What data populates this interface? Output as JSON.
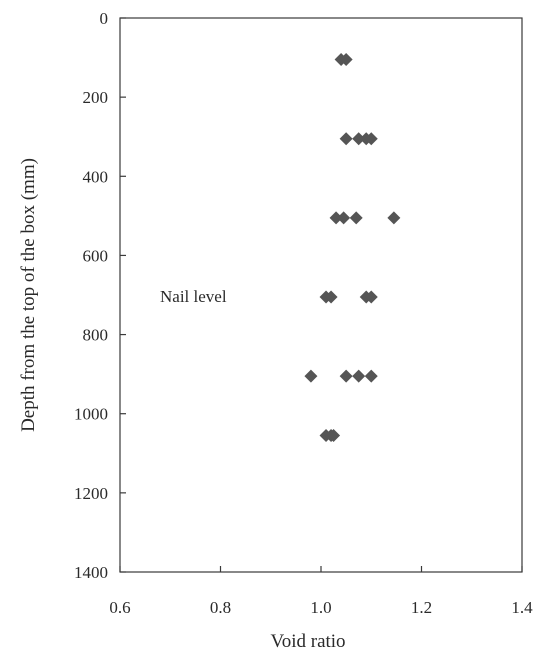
{
  "chart_data": {
    "type": "scatter",
    "xlabel": "Void ratio",
    "ylabel": "Depth from the top of the box (mm)",
    "xlim": [
      0.6,
      1.4
    ],
    "ylim": [
      0,
      1400
    ],
    "y_inverted": true,
    "grid": false,
    "xticks": [
      "0.6",
      "0.8",
      "1.0",
      "1.2",
      "1.4"
    ],
    "yticks": [
      "0",
      "200",
      "400",
      "600",
      "800",
      "1000",
      "1200",
      "1400"
    ],
    "marker": "diamond",
    "marker_color": "#555555",
    "annotation": "Nail level",
    "points": [
      {
        "x": 1.04,
        "y": 105
      },
      {
        "x": 1.05,
        "y": 105
      },
      {
        "x": 1.05,
        "y": 305
      },
      {
        "x": 1.075,
        "y": 305
      },
      {
        "x": 1.09,
        "y": 305
      },
      {
        "x": 1.1,
        "y": 305
      },
      {
        "x": 1.03,
        "y": 505
      },
      {
        "x": 1.045,
        "y": 505
      },
      {
        "x": 1.07,
        "y": 505
      },
      {
        "x": 1.145,
        "y": 505
      },
      {
        "x": 1.01,
        "y": 705
      },
      {
        "x": 1.02,
        "y": 705
      },
      {
        "x": 1.09,
        "y": 705
      },
      {
        "x": 1.1,
        "y": 705
      },
      {
        "x": 0.98,
        "y": 905
      },
      {
        "x": 1.05,
        "y": 905
      },
      {
        "x": 1.075,
        "y": 905
      },
      {
        "x": 1.1,
        "y": 905
      },
      {
        "x": 1.01,
        "y": 1055
      },
      {
        "x": 1.02,
        "y": 1055
      },
      {
        "x": 1.025,
        "y": 1055
      }
    ]
  }
}
